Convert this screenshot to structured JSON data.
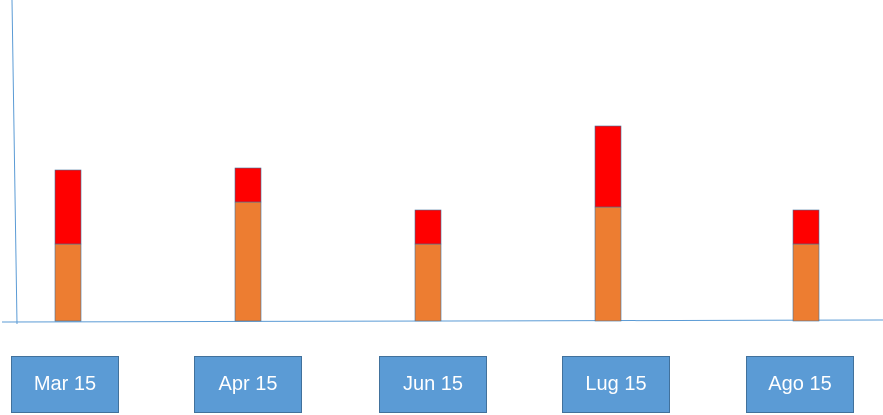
{
  "chart_data": {
    "type": "bar",
    "stacked": true,
    "categories": [
      "Mar 15",
      "Apr 15",
      "Jun 15",
      "Lug 15",
      "Ago 15"
    ],
    "series": [
      {
        "values": [
          77,
          119,
          77,
          114,
          77
        ],
        "color": "#ed7d31"
      },
      {
        "values": [
          74,
          34,
          34,
          81,
          34
        ],
        "color": "#ff0000"
      }
    ],
    "title": "",
    "xlabel": "",
    "ylabel": "",
    "grid": false,
    "legend": "none"
  }
}
